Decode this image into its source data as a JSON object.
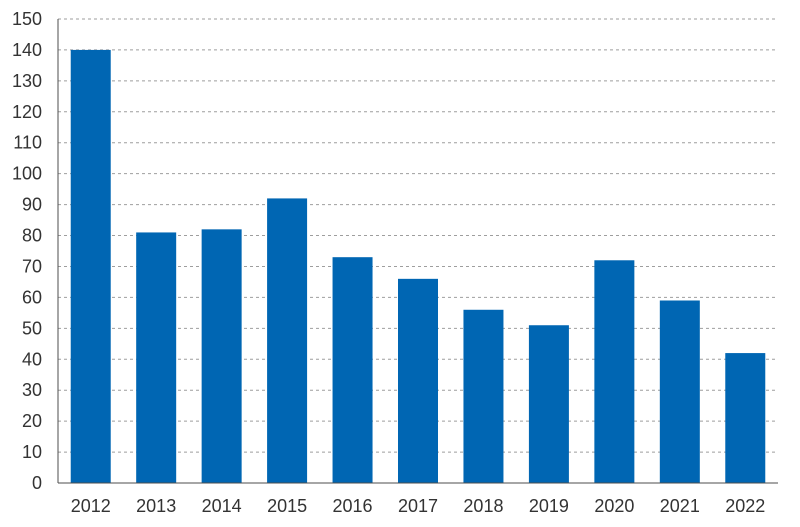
{
  "chart_data": {
    "type": "bar",
    "title": "",
    "xlabel": "",
    "ylabel": "",
    "categories": [
      "2012",
      "2013",
      "2014",
      "2015",
      "2016",
      "2017",
      "2018",
      "2019",
      "2020",
      "2021",
      "2022"
    ],
    "values": [
      140,
      81,
      82,
      92,
      73,
      66,
      56,
      51,
      72,
      59,
      42
    ],
    "ylim": [
      0,
      150
    ],
    "yticks": [
      0,
      10,
      20,
      30,
      40,
      50,
      60,
      70,
      80,
      90,
      100,
      110,
      120,
      130,
      140,
      150
    ],
    "grid": true,
    "bar_color": "#0066b3"
  }
}
